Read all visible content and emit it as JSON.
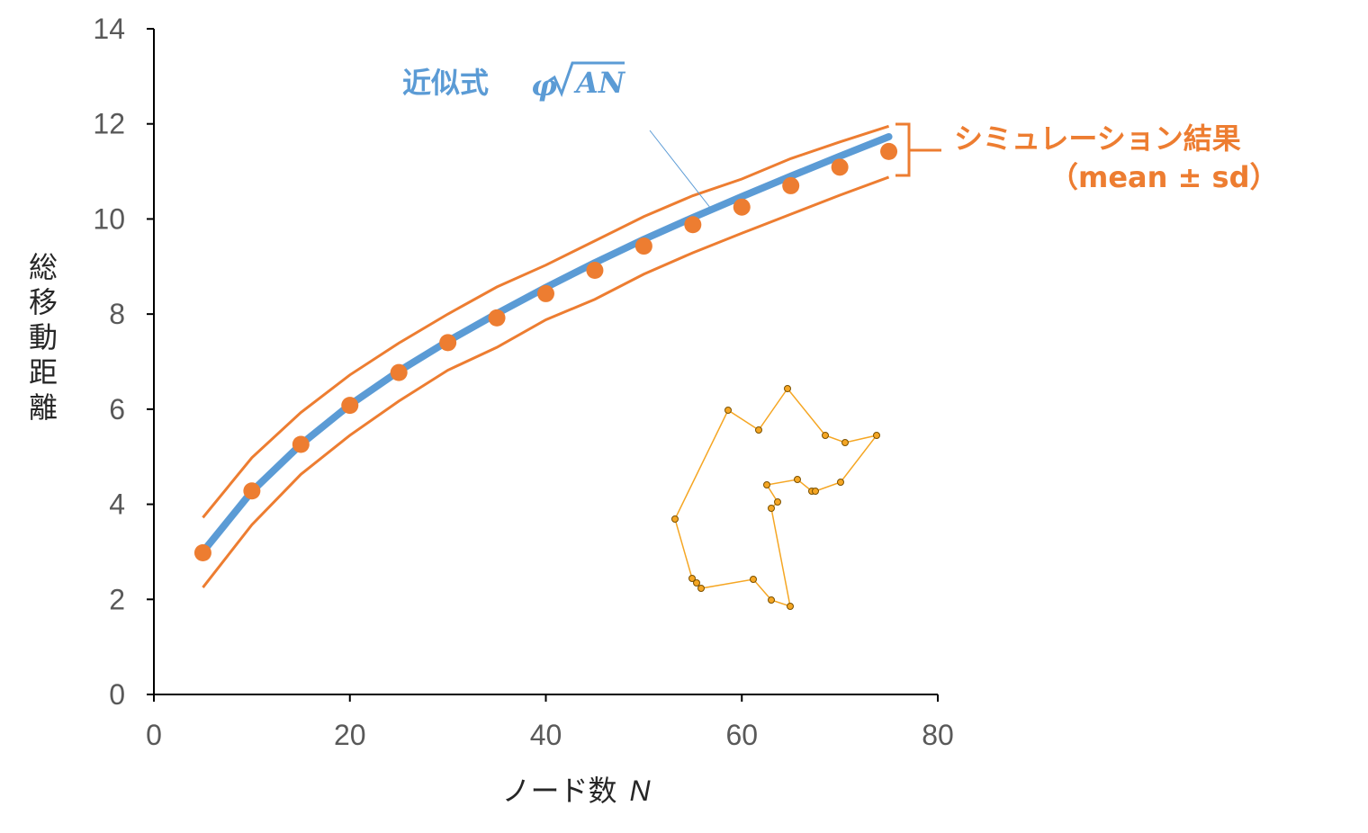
{
  "chart_data": {
    "type": "line",
    "title": "",
    "xlabel": "ノード数",
    "xlabel_var": "N",
    "ylabel": "総移動距離",
    "xlim": [
      0,
      80
    ],
    "ylim": [
      0,
      14
    ],
    "x_ticks": [
      "0",
      "20",
      "40",
      "60",
      "80"
    ],
    "y_ticks": [
      "0",
      "2",
      "4",
      "6",
      "8",
      "10",
      "12",
      "14"
    ],
    "grid": false,
    "x": [
      5,
      10,
      15,
      20,
      25,
      30,
      35,
      40,
      45,
      50,
      55,
      60,
      65,
      70,
      75
    ],
    "series": [
      {
        "kind": "fit-line",
        "color": "#5b9bd5",
        "values": [
          3.0,
          4.27,
          5.26,
          6.09,
          6.8,
          7.43,
          8.01,
          8.56,
          9.08,
          9.57,
          10.03,
          10.47,
          10.9,
          11.32,
          11.73
        ]
      },
      {
        "kind": "mean-points",
        "color": "#ed7d31",
        "values": [
          2.98,
          4.28,
          5.26,
          6.08,
          6.77,
          7.4,
          7.92,
          8.43,
          8.92,
          9.43,
          9.88,
          10.25,
          10.7,
          11.09,
          11.42
        ]
      },
      {
        "kind": "upper-band",
        "color": "#ed7d31",
        "values": [
          3.72,
          4.98,
          5.93,
          6.72,
          7.39,
          8.0,
          8.57,
          9.03,
          9.54,
          10.05,
          10.49,
          10.84,
          11.27,
          11.62,
          11.95
        ]
      },
      {
        "kind": "lower-band",
        "color": "#ed7d31",
        "values": [
          2.25,
          3.57,
          4.63,
          5.45,
          6.17,
          6.82,
          7.3,
          7.88,
          8.31,
          8.84,
          9.29,
          9.7,
          10.1,
          10.5,
          10.88
        ]
      }
    ],
    "annotations": {
      "fit_label": "近似式",
      "fit_formula_var": "φ",
      "fit_formula_rad": "AN",
      "sim_label": "シミュレーション結果",
      "sim_sub": "（mean ± sd）"
    },
    "inset": {
      "description_color": "#f5a623",
      "points": [
        [
          875,
          432
        ],
        [
          843,
          478
        ],
        [
          809,
          456
        ],
        [
          750,
          577
        ],
        [
          769,
          643
        ],
        [
          774,
          648
        ],
        [
          779,
          654
        ],
        [
          837,
          644
        ],
        [
          857,
          667
        ],
        [
          878,
          674
        ],
        [
          857,
          565
        ],
        [
          864,
          558
        ],
        [
          852,
          539
        ],
        [
          886,
          533
        ],
        [
          902,
          546
        ],
        [
          906,
          546
        ],
        [
          934,
          536
        ],
        [
          974,
          484
        ],
        [
          939,
          492
        ],
        [
          917,
          484
        ],
        [
          875,
          432
        ]
      ]
    }
  }
}
